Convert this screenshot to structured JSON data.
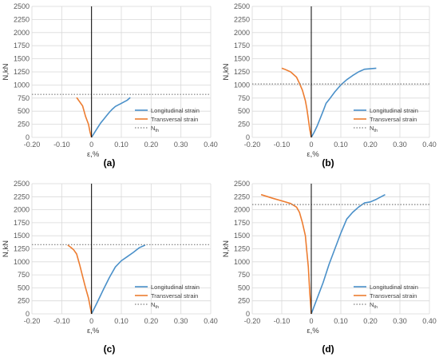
{
  "chart_data": [
    {
      "panel": "a",
      "type": "line",
      "xlabel": "ε,%",
      "ylabel": "N,kN",
      "xlim": [
        -0.2,
        0.4
      ],
      "ylim": [
        0,
        2500
      ],
      "x_ticks": [
        "-0.20",
        "-0.10",
        "0",
        "0.10",
        "0.20",
        "0.30",
        "0.40"
      ],
      "y_ticks": [
        "0",
        "250",
        "500",
        "750",
        "1000",
        "1250",
        "1500",
        "1750",
        "2000",
        "2250",
        "2500"
      ],
      "grid": true,
      "legend": "bottom-right",
      "series": [
        {
          "name": "Longitudinal strain",
          "color": "#4a90c9",
          "style": "solid",
          "x": [
            0,
            0.01,
            0.02,
            0.03,
            0.04,
            0.05,
            0.06,
            0.07,
            0.08,
            0.09,
            0.1,
            0.12,
            0.13
          ],
          "y": [
            0,
            90,
            180,
            270,
            340,
            410,
            480,
            540,
            590,
            620,
            650,
            710,
            760
          ]
        },
        {
          "name": "Transversal strain",
          "color": "#ed7d31",
          "style": "solid",
          "x": [
            0,
            -0.005,
            -0.01,
            -0.02,
            -0.03,
            -0.05
          ],
          "y": [
            0,
            100,
            250,
            400,
            600,
            760
          ]
        },
        {
          "name": "Nth",
          "color": "#7f7f7f",
          "style": "dotted",
          "x": [
            -0.2,
            0.4
          ],
          "y": [
            820,
            820
          ]
        }
      ]
    },
    {
      "panel": "b",
      "type": "line",
      "xlabel": "ε,%",
      "ylabel": "N,kN",
      "xlim": [
        -0.2,
        0.4
      ],
      "ylim": [
        0,
        2500
      ],
      "x_ticks": [
        "-0.20",
        "-0.10",
        "0",
        "0.10",
        "0.20",
        "0.30",
        "0.40"
      ],
      "y_ticks": [
        "0",
        "250",
        "500",
        "750",
        "1000",
        "1250",
        "1500",
        "1750",
        "2000",
        "2250",
        "2500"
      ],
      "grid": true,
      "legend": "bottom-right",
      "series": [
        {
          "name": "Longitudinal strain",
          "color": "#4a90c9",
          "style": "solid",
          "x": [
            0,
            0.01,
            0.02,
            0.03,
            0.04,
            0.05,
            0.06,
            0.08,
            0.1,
            0.12,
            0.14,
            0.16,
            0.18,
            0.2,
            0.22
          ],
          "y": [
            0,
            100,
            220,
            360,
            500,
            650,
            720,
            870,
            1000,
            1100,
            1180,
            1250,
            1300,
            1310,
            1320
          ]
        },
        {
          "name": "Transversal strain",
          "color": "#ed7d31",
          "style": "solid",
          "x": [
            0,
            -0.005,
            -0.01,
            -0.015,
            -0.02,
            -0.03,
            -0.04,
            -0.05,
            -0.07,
            -0.09,
            -0.1
          ],
          "y": [
            0,
            150,
            350,
            550,
            700,
            900,
            1030,
            1150,
            1250,
            1300,
            1320
          ]
        },
        {
          "name": "Nth",
          "color": "#7f7f7f",
          "style": "dotted",
          "x": [
            -0.2,
            0.4
          ],
          "y": [
            1020,
            1020
          ]
        }
      ]
    },
    {
      "panel": "c",
      "type": "line",
      "xlabel": "ε,%",
      "ylabel": "N,kN",
      "xlim": [
        -0.2,
        0.4
      ],
      "ylim": [
        0,
        2500
      ],
      "x_ticks": [
        "-0.20",
        "-0.10",
        "0",
        "0.10",
        "0.20",
        "0.30",
        "0.40"
      ],
      "y_ticks": [
        "0",
        "250",
        "500",
        "750",
        "1000",
        "1250",
        "1500",
        "1750",
        "2000",
        "2250",
        "2500"
      ],
      "grid": true,
      "legend": "bottom-right",
      "series": [
        {
          "name": "Longitudinal strain",
          "color": "#4a90c9",
          "style": "solid",
          "x": [
            0,
            0.02,
            0.04,
            0.06,
            0.08,
            0.1,
            0.12,
            0.14,
            0.16,
            0.18
          ],
          "y": [
            0,
            230,
            470,
            700,
            900,
            1020,
            1100,
            1180,
            1270,
            1320
          ]
        },
        {
          "name": "Transversal strain",
          "color": "#ed7d31",
          "style": "solid",
          "x": [
            0,
            -0.005,
            -0.01,
            -0.02,
            -0.03,
            -0.04,
            -0.05,
            -0.06,
            -0.07,
            -0.08
          ],
          "y": [
            0,
            150,
            300,
            500,
            720,
            950,
            1150,
            1230,
            1280,
            1320
          ]
        },
        {
          "name": "Nth",
          "color": "#7f7f7f",
          "style": "dotted",
          "x": [
            -0.2,
            0.4
          ],
          "y": [
            1330,
            1330
          ]
        }
      ]
    },
    {
      "panel": "d",
      "type": "line",
      "xlabel": "ε,%",
      "ylabel": "N,kN",
      "xlim": [
        -0.2,
        0.4
      ],
      "ylim": [
        0,
        2500
      ],
      "x_ticks": [
        "-0.20",
        "-0.10",
        "0",
        "0.10",
        "0.20",
        "0.30",
        "0.40"
      ],
      "y_ticks": [
        "0",
        "250",
        "500",
        "750",
        "1000",
        "1250",
        "1500",
        "1750",
        "2000",
        "2250",
        "2500"
      ],
      "grid": true,
      "legend": "bottom-right",
      "series": [
        {
          "name": "Longitudinal strain",
          "color": "#4a90c9",
          "style": "solid",
          "x": [
            0,
            0.02,
            0.04,
            0.06,
            0.08,
            0.1,
            0.12,
            0.14,
            0.16,
            0.18,
            0.2,
            0.22,
            0.25
          ],
          "y": [
            0,
            300,
            600,
            950,
            1250,
            1550,
            1820,
            1950,
            2050,
            2130,
            2150,
            2200,
            2290
          ]
        },
        {
          "name": "Transversal strain",
          "color": "#ed7d31",
          "style": "solid",
          "x": [
            0,
            -0.005,
            -0.01,
            -0.015,
            -0.02,
            -0.03,
            -0.04,
            -0.05,
            -0.07,
            -0.1,
            -0.13,
            -0.17
          ],
          "y": [
            0,
            400,
            900,
            1200,
            1500,
            1750,
            1950,
            2050,
            2120,
            2170,
            2220,
            2290
          ]
        },
        {
          "name": "Nth",
          "color": "#7f7f7f",
          "style": "dotted",
          "x": [
            -0.2,
            0.4
          ],
          "y": [
            2100,
            2100
          ]
        }
      ]
    }
  ],
  "panel_labels": {
    "a": "(a)",
    "b": "(b)",
    "c": "(c)",
    "d": "(d)"
  },
  "legend_labels": {
    "longitudinal": "Longitudinal strain",
    "transversal": "Transversal strain",
    "nth_main": "N",
    "nth_sub": "th"
  }
}
